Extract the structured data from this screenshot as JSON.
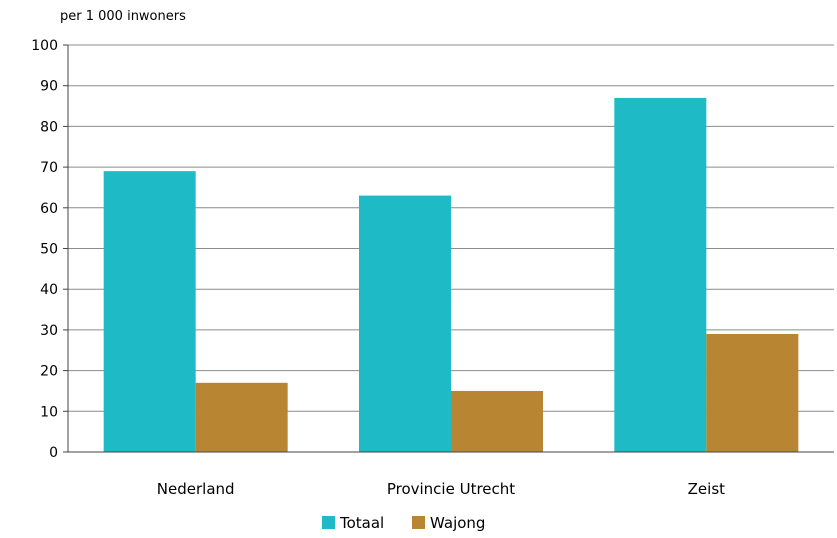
{
  "chart_data": {
    "type": "bar",
    "unit_label": "per 1 000 inwoners",
    "categories": [
      "Nederland",
      "Provincie Utrecht",
      "Zeist"
    ],
    "series": [
      {
        "name": "Totaal",
        "values": [
          69,
          63,
          87
        ],
        "color": "#1ebbc6"
      },
      {
        "name": "Wajong",
        "values": [
          17,
          15,
          29
        ],
        "color": "#b88632"
      }
    ],
    "ylim": [
      0,
      100
    ],
    "yticks": [
      0,
      10,
      20,
      30,
      40,
      50,
      60,
      70,
      80,
      90,
      100
    ],
    "grid": true,
    "legend_position": "bottom"
  }
}
